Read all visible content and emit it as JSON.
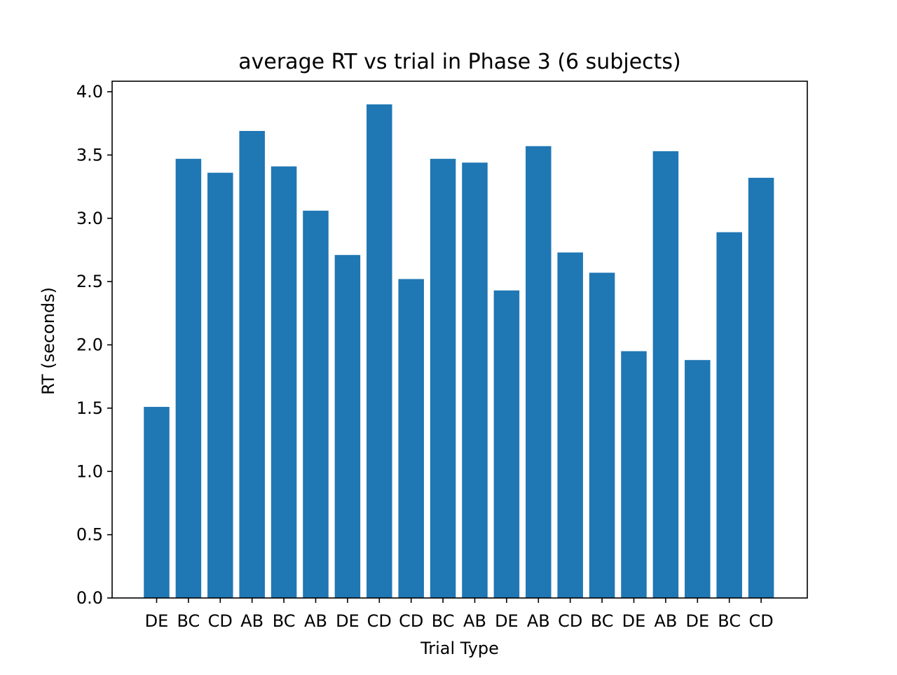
{
  "chart_data": {
    "type": "bar",
    "title": "average RT vs trial in Phase 3 (6 subjects)",
    "xlabel": "Trial Type",
    "ylabel": "RT (seconds)",
    "categories": [
      "DE",
      "BC",
      "CD",
      "AB",
      "BC",
      "AB",
      "DE",
      "CD",
      "CD",
      "BC",
      "AB",
      "DE",
      "AB",
      "CD",
      "BC",
      "DE",
      "AB",
      "DE",
      "BC",
      "CD"
    ],
    "values": [
      1.51,
      3.47,
      3.36,
      3.69,
      3.41,
      3.06,
      2.71,
      3.9,
      2.52,
      3.47,
      3.44,
      2.43,
      3.57,
      2.73,
      2.57,
      1.95,
      3.53,
      1.88,
      2.89,
      3.32
    ],
    "ylim": [
      0,
      4.0
    ],
    "yticks": [
      0.0,
      0.5,
      1.0,
      1.5,
      2.0,
      2.5,
      3.0,
      3.5,
      4.0
    ],
    "ytick_labels": [
      "0.0",
      "0.5",
      "1.0",
      "1.5",
      "2.0",
      "2.5",
      "3.0",
      "3.5",
      "4.0"
    ],
    "grid": false,
    "legend": "none",
    "colors": {
      "bar": "#1f77b4",
      "axis": "#000000",
      "background": "#ffffff"
    }
  }
}
